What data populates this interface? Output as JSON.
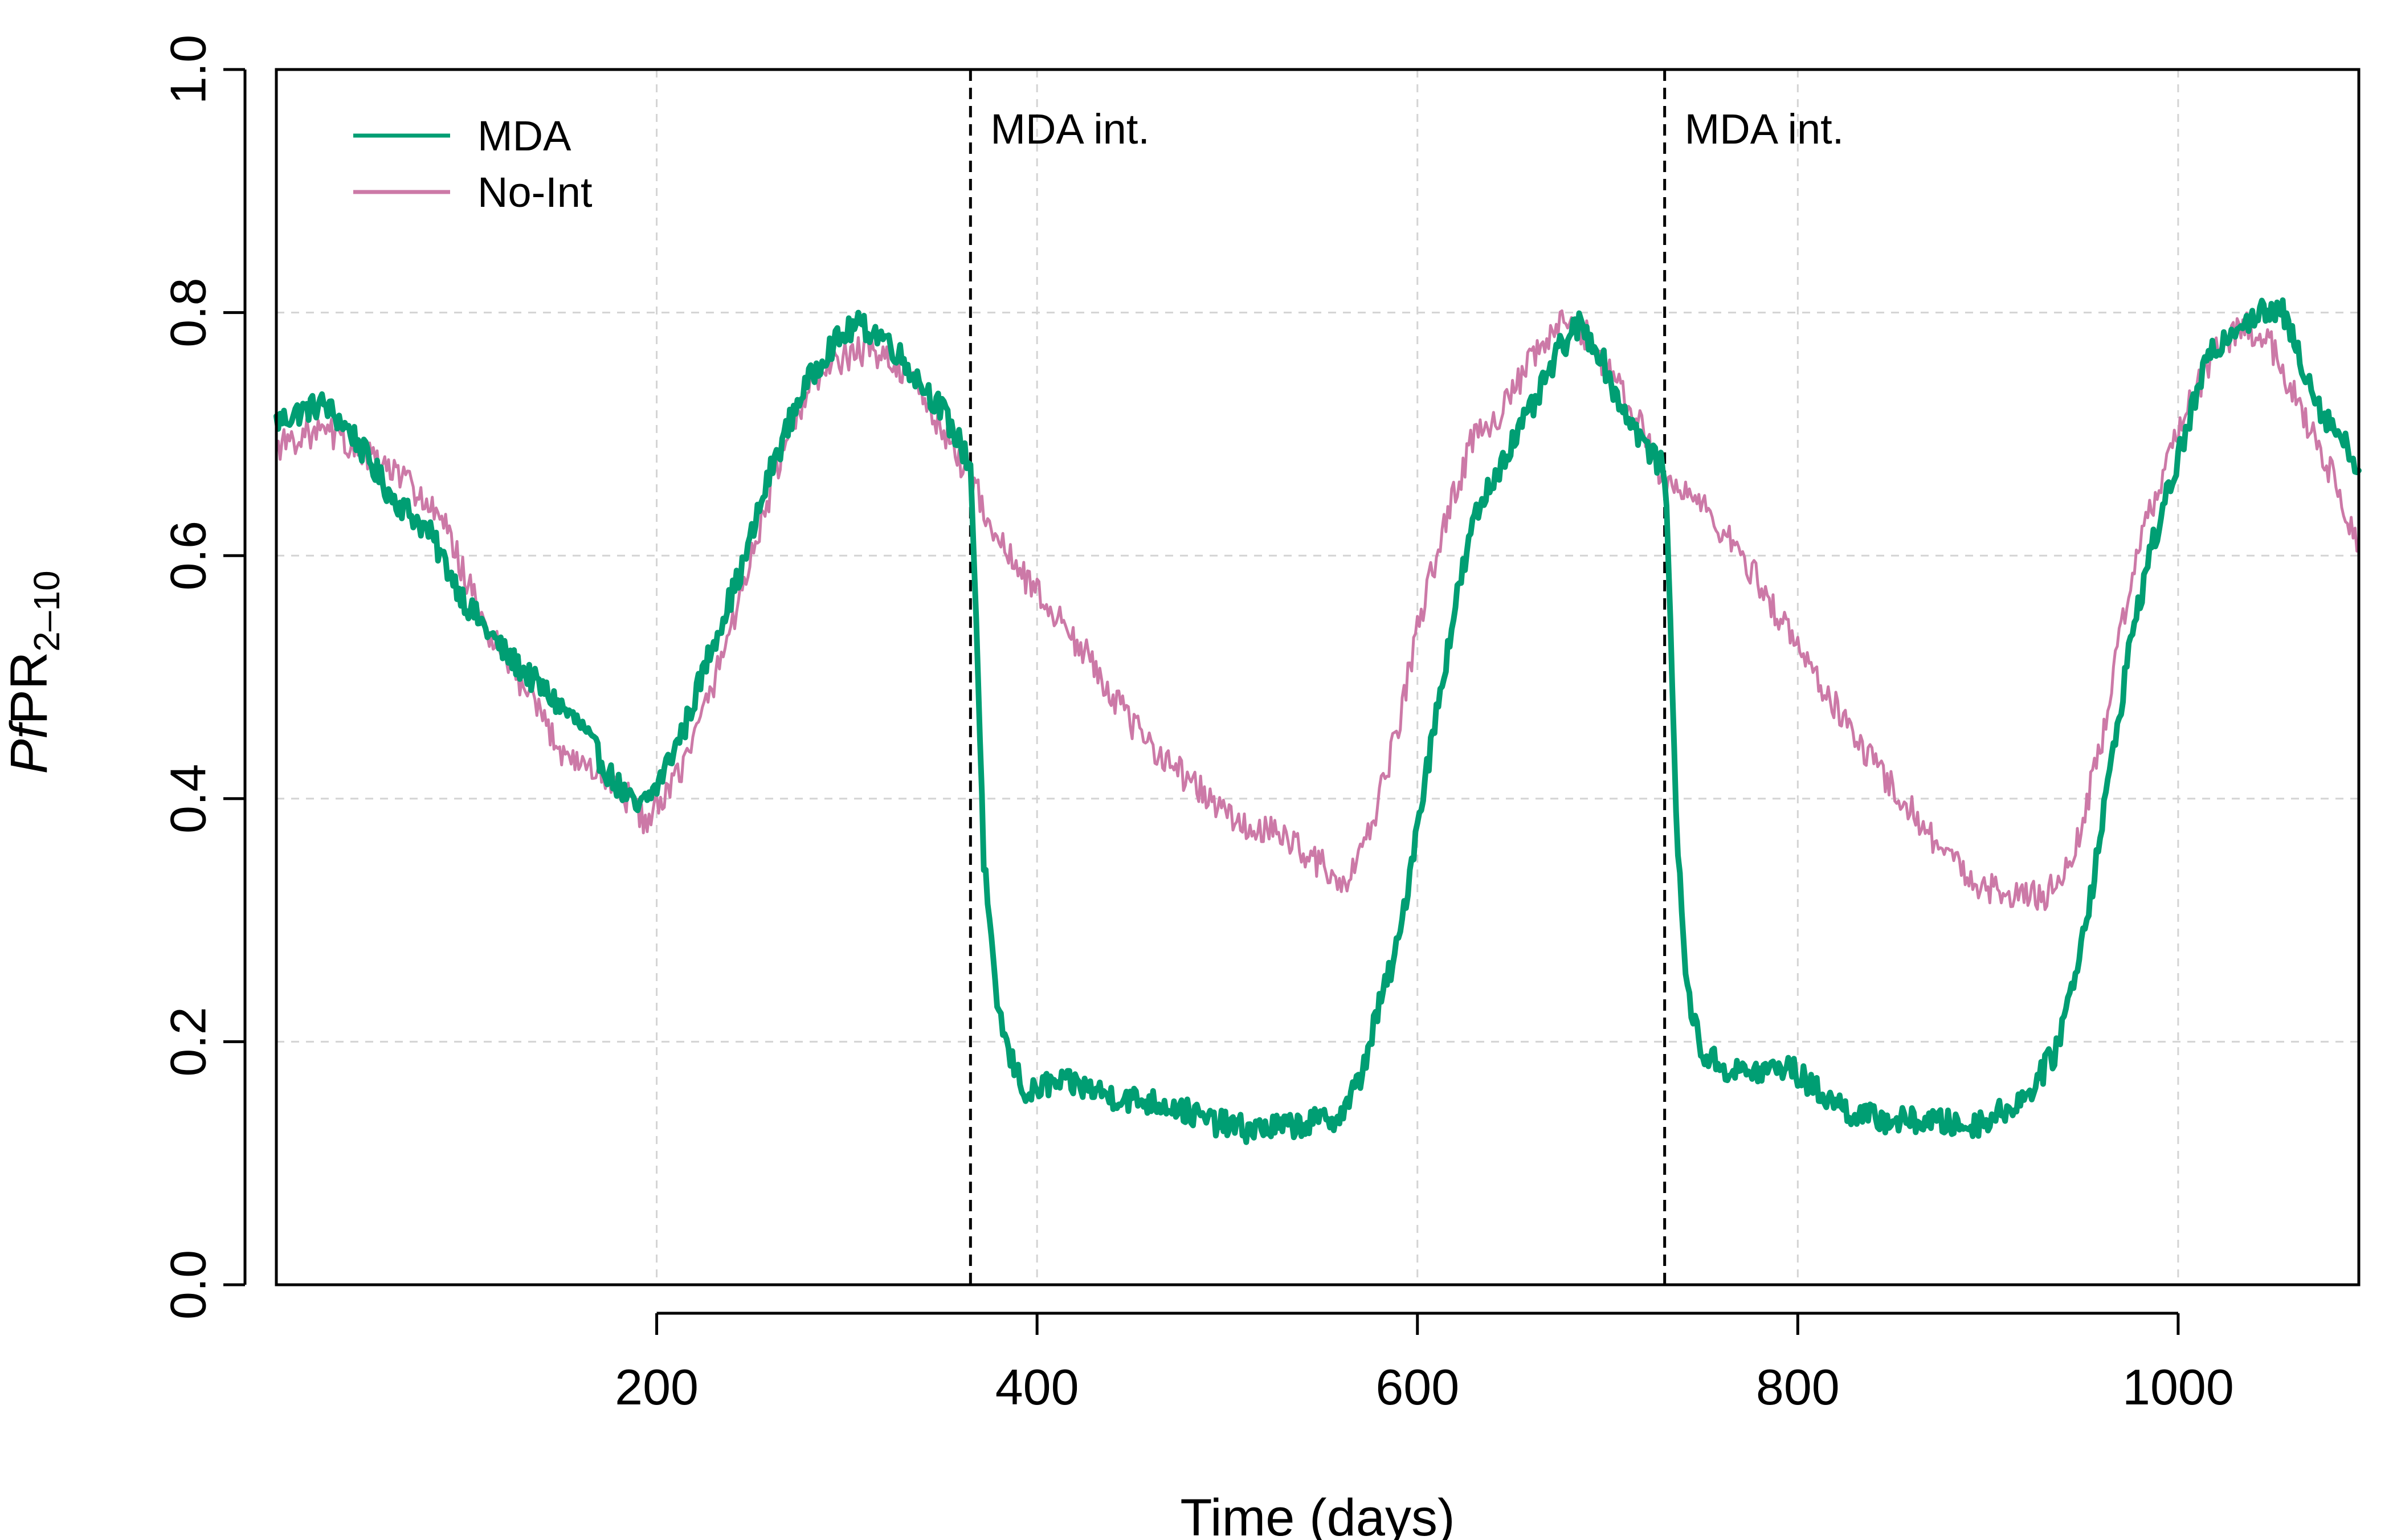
{
  "chart_data": {
    "type": "line",
    "xlabel": "Time (days)",
    "ylabel": {
      "italic": "Pf",
      "main": "PR",
      "sub": "2–10"
    },
    "xlim": [
      0,
      1095
    ],
    "ylim": [
      0,
      1
    ],
    "x_ticks": [
      200,
      400,
      600,
      800,
      1000
    ],
    "x_tick_labels": [
      "200",
      "400",
      "600",
      "800",
      "1000"
    ],
    "y_ticks": [
      0,
      0.2,
      0.4,
      0.6,
      0.8,
      1.0
    ],
    "y_tick_labels": [
      "0.0",
      "0.2",
      "0.4",
      "0.6",
      "0.8",
      "1.0"
    ],
    "grid": true,
    "legend_position": "top-left",
    "annotations": [
      {
        "x": 365,
        "label": "MDA int."
      },
      {
        "x": 730,
        "label": "MDA int."
      }
    ],
    "series": [
      {
        "name": "MDA",
        "color": "#009E73",
        "style": "thick",
        "points": [
          [
            0,
            0.71
          ],
          [
            15,
            0.72
          ],
          [
            25,
            0.725
          ],
          [
            40,
            0.7
          ],
          [
            60,
            0.65
          ],
          [
            80,
            0.62
          ],
          [
            100,
            0.56
          ],
          [
            120,
            0.52
          ],
          [
            140,
            0.49
          ],
          [
            160,
            0.46
          ],
          [
            175,
            0.42
          ],
          [
            190,
            0.39
          ],
          [
            200,
            0.41
          ],
          [
            215,
            0.46
          ],
          [
            230,
            0.53
          ],
          [
            245,
            0.59
          ],
          [
            260,
            0.67
          ],
          [
            275,
            0.73
          ],
          [
            290,
            0.77
          ],
          [
            305,
            0.79
          ],
          [
            320,
            0.78
          ],
          [
            335,
            0.75
          ],
          [
            350,
            0.72
          ],
          [
            360,
            0.69
          ],
          [
            365,
            0.675
          ],
          [
            368,
            0.55
          ],
          [
            372,
            0.35
          ],
          [
            378,
            0.24
          ],
          [
            385,
            0.19
          ],
          [
            395,
            0.155
          ],
          [
            405,
            0.165
          ],
          [
            420,
            0.165
          ],
          [
            440,
            0.155
          ],
          [
            470,
            0.148
          ],
          [
            490,
            0.135
          ],
          [
            510,
            0.128
          ],
          [
            530,
            0.13
          ],
          [
            550,
            0.135
          ],
          [
            560,
            0.14
          ],
          [
            570,
            0.17
          ],
          [
            580,
            0.23
          ],
          [
            590,
            0.28
          ],
          [
            600,
            0.38
          ],
          [
            610,
            0.47
          ],
          [
            620,
            0.56
          ],
          [
            630,
            0.63
          ],
          [
            645,
            0.68
          ],
          [
            660,
            0.72
          ],
          [
            675,
            0.77
          ],
          [
            685,
            0.79
          ],
          [
            695,
            0.77
          ],
          [
            705,
            0.73
          ],
          [
            720,
            0.69
          ],
          [
            730,
            0.67
          ],
          [
            733,
            0.55
          ],
          [
            737,
            0.35
          ],
          [
            742,
            0.24
          ],
          [
            750,
            0.19
          ],
          [
            765,
            0.175
          ],
          [
            780,
            0.175
          ],
          [
            795,
            0.18
          ],
          [
            810,
            0.16
          ],
          [
            830,
            0.14
          ],
          [
            850,
            0.135
          ],
          [
            870,
            0.135
          ],
          [
            890,
            0.13
          ],
          [
            905,
            0.14
          ],
          [
            920,
            0.155
          ],
          [
            935,
            0.19
          ],
          [
            945,
            0.25
          ],
          [
            955,
            0.33
          ],
          [
            965,
            0.43
          ],
          [
            975,
            0.53
          ],
          [
            985,
            0.6
          ],
          [
            1000,
            0.68
          ],
          [
            1015,
            0.76
          ],
          [
            1030,
            0.79
          ],
          [
            1045,
            0.8
          ],
          [
            1055,
            0.8
          ],
          [
            1065,
            0.76
          ],
          [
            1075,
            0.72
          ],
          [
            1085,
            0.7
          ],
          [
            1095,
            0.67
          ]
        ]
      },
      {
        "name": "No-Int",
        "color": "#CC79A7",
        "style": "thin",
        "points": [
          [
            0,
            0.69
          ],
          [
            15,
            0.7
          ],
          [
            30,
            0.7
          ],
          [
            50,
            0.68
          ],
          [
            70,
            0.66
          ],
          [
            90,
            0.62
          ],
          [
            110,
            0.54
          ],
          [
            130,
            0.49
          ],
          [
            150,
            0.44
          ],
          [
            170,
            0.42
          ],
          [
            185,
            0.4
          ],
          [
            195,
            0.38
          ],
          [
            205,
            0.4
          ],
          [
            220,
            0.45
          ],
          [
            235,
            0.52
          ],
          [
            250,
            0.6
          ],
          [
            265,
            0.68
          ],
          [
            280,
            0.74
          ],
          [
            295,
            0.76
          ],
          [
            310,
            0.77
          ],
          [
            325,
            0.76
          ],
          [
            340,
            0.73
          ],
          [
            355,
            0.69
          ],
          [
            365,
            0.665
          ],
          [
            380,
            0.61
          ],
          [
            395,
            0.58
          ],
          [
            410,
            0.55
          ],
          [
            430,
            0.51
          ],
          [
            450,
            0.46
          ],
          [
            470,
            0.43
          ],
          [
            490,
            0.4
          ],
          [
            510,
            0.375
          ],
          [
            530,
            0.37
          ],
          [
            550,
            0.345
          ],
          [
            560,
            0.325
          ],
          [
            570,
            0.35
          ],
          [
            580,
            0.4
          ],
          [
            590,
            0.46
          ],
          [
            600,
            0.54
          ],
          [
            615,
            0.63
          ],
          [
            630,
            0.7
          ],
          [
            645,
            0.72
          ],
          [
            660,
            0.76
          ],
          [
            675,
            0.79
          ],
          [
            690,
            0.78
          ],
          [
            705,
            0.74
          ],
          [
            720,
            0.7
          ],
          [
            730,
            0.66
          ],
          [
            745,
            0.65
          ],
          [
            760,
            0.62
          ],
          [
            775,
            0.59
          ],
          [
            790,
            0.55
          ],
          [
            810,
            0.5
          ],
          [
            830,
            0.45
          ],
          [
            850,
            0.41
          ],
          [
            870,
            0.37
          ],
          [
            890,
            0.335
          ],
          [
            910,
            0.32
          ],
          [
            930,
            0.32
          ],
          [
            945,
            0.35
          ],
          [
            960,
            0.45
          ],
          [
            975,
            0.58
          ],
          [
            990,
            0.66
          ],
          [
            1005,
            0.72
          ],
          [
            1020,
            0.77
          ],
          [
            1035,
            0.79
          ],
          [
            1050,
            0.77
          ],
          [
            1065,
            0.72
          ],
          [
            1080,
            0.67
          ],
          [
            1095,
            0.61
          ]
        ]
      }
    ]
  }
}
